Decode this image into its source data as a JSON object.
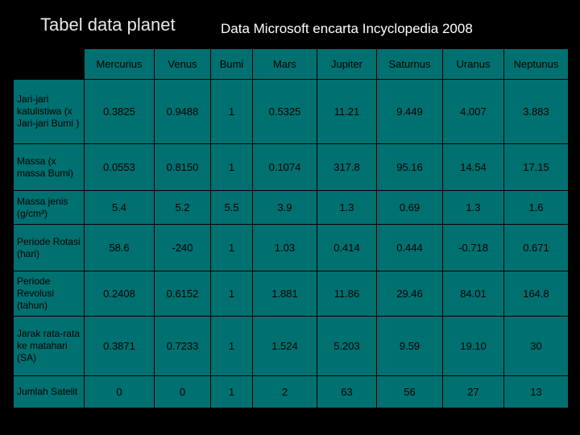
{
  "header": {
    "title": "Tabel data planet",
    "source": "Data Microsoft encarta Incyclopedia 2008"
  },
  "table": {
    "columns": [
      "Mercurius",
      "Venus",
      "Bumi",
      "Mars",
      "Jupiter",
      "Saturnus",
      "Uranus",
      "Neptunus"
    ],
    "rows": [
      {
        "label": "Jari-jari katulistiwa (x Jari-jari Bumi )",
        "values": [
          "0.3825",
          "0.9488",
          "1",
          "0.5325",
          "11.21",
          "9.449",
          "4.007",
          "3.883"
        ]
      },
      {
        "label": "Massa (x massa Bumi)",
        "values": [
          "0.0553",
          "0.8150",
          "1",
          "0.1074",
          "317.8",
          "95.16",
          "14.54",
          "17.15"
        ]
      },
      {
        "label": "Massa jenis (g/cm³)",
        "values": [
          "5.4",
          "5.2",
          "5.5",
          "3.9",
          "1.3",
          "0.69",
          "1.3",
          "1.6"
        ]
      },
      {
        "label": "Periode Rotasi (hari)",
        "values": [
          "58.6",
          "-240",
          "1",
          "1.03",
          "0.414",
          "0.444",
          "-0.718",
          "0.671"
        ]
      },
      {
        "label": "Periode Revolusi (tahun)",
        "values": [
          "0.2408",
          "0.6152",
          "1",
          "1.881",
          "11.86",
          "29.46",
          "84.01",
          "164.8"
        ]
      },
      {
        "label": "Jarak rata-rata ke matahari (SA)",
        "values": [
          "0.3871",
          "0.7233",
          "1",
          "1.524",
          "5.203",
          "9.59",
          "19.10",
          "30"
        ]
      },
      {
        "label": "Jumlah Satelit",
        "values": [
          "0",
          "0",
          "1",
          "2",
          "63",
          "56",
          "27",
          "13"
        ]
      }
    ]
  }
}
